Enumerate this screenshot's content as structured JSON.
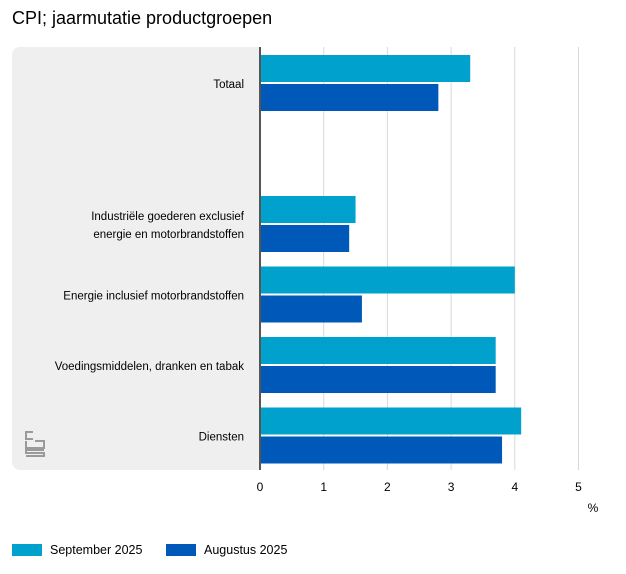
{
  "chart_data": {
    "type": "bar",
    "orientation": "horizontal",
    "title": "CPI; jaarmutatie productgroepen",
    "categories": [
      "Totaal",
      "",
      "Industriële goederen exclusief\nenergie en motorbrandstoffen",
      "Energie inclusief motorbrandstoffen",
      "Voedingsmiddelen, dranken en tabak",
      "Diensten"
    ],
    "series": [
      {
        "name": "September 2025",
        "color": "#00a1cd",
        "values": [
          3.3,
          null,
          1.5,
          4.0,
          3.7,
          4.1
        ]
      },
      {
        "name": "Augustus 2025",
        "color": "#0058b8",
        "values": [
          2.8,
          null,
          1.4,
          1.6,
          3.7,
          3.8
        ]
      }
    ],
    "xlabel": "%",
    "xlim": [
      0,
      5
    ],
    "xticks": [
      "0",
      "1",
      "2",
      "3",
      "4",
      "5"
    ],
    "grid": true,
    "legend": "bottom-left"
  }
}
